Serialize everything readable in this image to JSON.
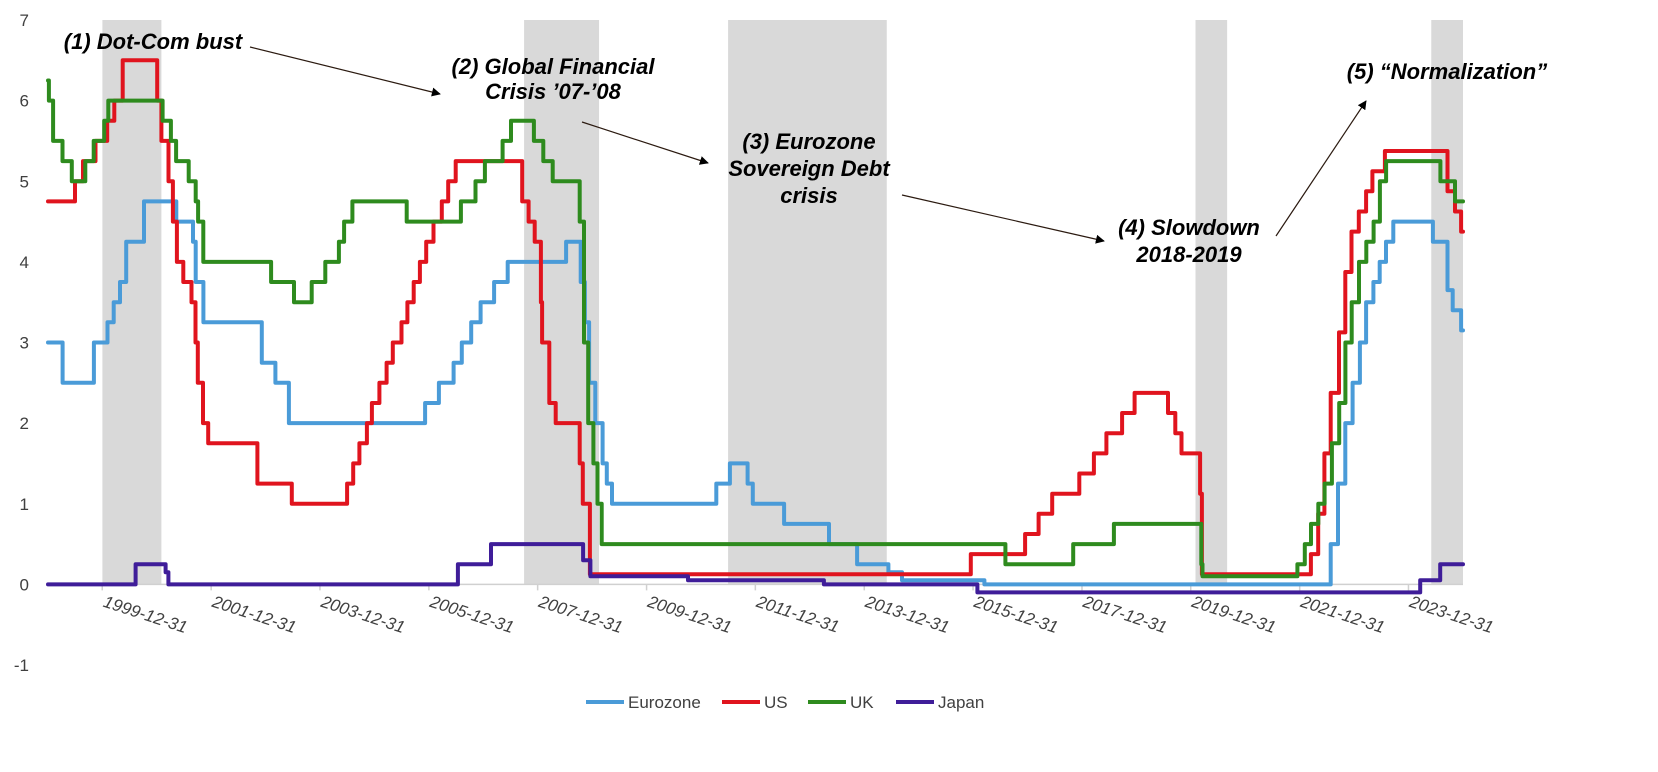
{
  "chart_data": {
    "type": "line",
    "xlim": [
      "1999-01-01",
      "2024-12-31"
    ],
    "ylim": [
      -1,
      7
    ],
    "yticks": [
      -1,
      0,
      1,
      2,
      3,
      4,
      5,
      6,
      7
    ],
    "xticks": [
      "1999-12-31",
      "2001-12-31",
      "2003-12-31",
      "2005-12-31",
      "2007-12-31",
      "2009-12-31",
      "2011-12-31",
      "2013-12-31",
      "2015-12-31",
      "2017-12-31",
      "2019-12-31",
      "2021-12-31",
      "2023-12-31"
    ],
    "legend": {
      "position": "bottom-center"
    },
    "shaded_periods": [
      {
        "start": "2000-01-01",
        "end": "2001-01-31"
      },
      {
        "start": "2007-10-01",
        "end": "2009-02-15"
      },
      {
        "start": "2011-07-01",
        "end": "2014-05-31"
      },
      {
        "start": "2020-02-01",
        "end": "2020-08-31"
      },
      {
        "start": "2024-06-01",
        "end": "2024-12-31"
      }
    ],
    "annotations": [
      {
        "text": [
          "(1) Dot-Com bust"
        ]
      },
      {
        "text": [
          "(2) Global  Financial",
          "Crisis ’07-’08"
        ]
      },
      {
        "text": [
          "(3) Eurozone",
          "Sovereign  Debt",
          "crisis"
        ]
      },
      {
        "text": [
          "(4) Slowdown",
          "2018-2019"
        ]
      },
      {
        "text": [
          "(5) “Normalization”"
        ]
      }
    ],
    "series": [
      {
        "name": "Eurozone",
        "color": "#4A9BD8",
        "points": [
          [
            "1999-01-01",
            3.0
          ],
          [
            "1999-04-01",
            3.0
          ],
          [
            "1999-04-09",
            2.5
          ],
          [
            "1999-11-01",
            2.5
          ],
          [
            "1999-11-05",
            3.0
          ],
          [
            "2000-02-01",
            3.0
          ],
          [
            "2000-02-04",
            3.25
          ],
          [
            "2000-03-17",
            3.5
          ],
          [
            "2000-04-28",
            3.75
          ],
          [
            "2000-06-09",
            4.25
          ],
          [
            "2000-10-06",
            4.75
          ],
          [
            "2001-05-11",
            4.5
          ],
          [
            "2001-08-31",
            4.25
          ],
          [
            "2001-09-18",
            3.75
          ],
          [
            "2001-11-09",
            3.25
          ],
          [
            "2002-12-06",
            2.75
          ],
          [
            "2003-03-07",
            2.5
          ],
          [
            "2003-06-06",
            2.0
          ],
          [
            "2005-12-06",
            2.25
          ],
          [
            "2006-03-08",
            2.5
          ],
          [
            "2006-06-15",
            2.75
          ],
          [
            "2006-08-09",
            3.0
          ],
          [
            "2006-10-11",
            3.25
          ],
          [
            "2006-12-13",
            3.5
          ],
          [
            "2007-03-14",
            3.75
          ],
          [
            "2007-06-13",
            4.0
          ],
          [
            "2008-07-09",
            4.25
          ],
          [
            "2008-10-15",
            3.75
          ],
          [
            "2008-11-12",
            3.25
          ],
          [
            "2008-12-10",
            2.5
          ],
          [
            "2009-01-21",
            2.0
          ],
          [
            "2009-03-11",
            1.5
          ],
          [
            "2009-04-08",
            1.25
          ],
          [
            "2009-05-13",
            1.0
          ],
          [
            "2011-04-13",
            1.25
          ],
          [
            "2011-07-13",
            1.5
          ],
          [
            "2011-11-09",
            1.25
          ],
          [
            "2011-12-14",
            1.0
          ],
          [
            "2012-07-11",
            0.75
          ],
          [
            "2013-05-08",
            0.5
          ],
          [
            "2013-11-13",
            0.25
          ],
          [
            "2014-06-11",
            0.15
          ],
          [
            "2014-09-10",
            0.05
          ],
          [
            "2016-03-16",
            0.0
          ],
          [
            "2022-07-27",
            0.5
          ],
          [
            "2022-09-14",
            1.25
          ],
          [
            "2022-11-02",
            2.0
          ],
          [
            "2022-12-21",
            2.5
          ],
          [
            "2023-02-08",
            3.0
          ],
          [
            "2023-03-22",
            3.5
          ],
          [
            "2023-05-10",
            3.75
          ],
          [
            "2023-06-21",
            4.0
          ],
          [
            "2023-08-02",
            4.25
          ],
          [
            "2023-09-20",
            4.5
          ],
          [
            "2024-06-12",
            4.25
          ],
          [
            "2024-09-18",
            3.65
          ],
          [
            "2024-10-23",
            3.4
          ],
          [
            "2024-12-18",
            3.15
          ]
        ]
      },
      {
        "name": "US",
        "color": "#E0141E",
        "points": [
          [
            "1999-01-01",
            4.75
          ],
          [
            "1999-07-01",
            5.0
          ],
          [
            "1999-08-24",
            5.25
          ],
          [
            "1999-11-16",
            5.5
          ],
          [
            "2000-02-02",
            5.75
          ],
          [
            "2000-03-21",
            6.0
          ],
          [
            "2000-05-16",
            6.5
          ],
          [
            "2001-01-03",
            6.0
          ],
          [
            "2001-01-31",
            5.5
          ],
          [
            "2001-03-20",
            5.0
          ],
          [
            "2001-04-18",
            4.5
          ],
          [
            "2001-05-15",
            4.0
          ],
          [
            "2001-06-27",
            3.75
          ],
          [
            "2001-08-21",
            3.5
          ],
          [
            "2001-09-17",
            3.0
          ],
          [
            "2001-10-02",
            2.5
          ],
          [
            "2001-11-06",
            2.0
          ],
          [
            "2001-12-11",
            1.75
          ],
          [
            "2002-11-06",
            1.25
          ],
          [
            "2003-06-25",
            1.0
          ],
          [
            "2004-06-30",
            1.25
          ],
          [
            "2004-08-10",
            1.5
          ],
          [
            "2004-09-21",
            1.75
          ],
          [
            "2004-11-10",
            2.0
          ],
          [
            "2004-12-14",
            2.25
          ],
          [
            "2005-02-02",
            2.5
          ],
          [
            "2005-03-22",
            2.75
          ],
          [
            "2005-05-03",
            3.0
          ],
          [
            "2005-06-30",
            3.25
          ],
          [
            "2005-08-09",
            3.5
          ],
          [
            "2005-09-20",
            3.75
          ],
          [
            "2005-11-01",
            4.0
          ],
          [
            "2005-12-13",
            4.25
          ],
          [
            "2006-01-31",
            4.5
          ],
          [
            "2006-03-28",
            4.75
          ],
          [
            "2006-05-10",
            5.0
          ],
          [
            "2006-06-29",
            5.25
          ],
          [
            "2007-09-18",
            4.75
          ],
          [
            "2007-10-31",
            4.5
          ],
          [
            "2007-12-11",
            4.25
          ],
          [
            "2008-01-22",
            3.5
          ],
          [
            "2008-01-30",
            3.0
          ],
          [
            "2008-03-18",
            2.25
          ],
          [
            "2008-04-30",
            2.0
          ],
          [
            "2008-10-08",
            1.5
          ],
          [
            "2008-10-29",
            1.0
          ],
          [
            "2008-12-16",
            0.125
          ],
          [
            "2015-12-16",
            0.375
          ],
          [
            "2016-12-14",
            0.625
          ],
          [
            "2017-03-15",
            0.875
          ],
          [
            "2017-06-14",
            1.125
          ],
          [
            "2017-12-13",
            1.375
          ],
          [
            "2018-03-21",
            1.625
          ],
          [
            "2018-06-13",
            1.875
          ],
          [
            "2018-09-26",
            2.125
          ],
          [
            "2018-12-19",
            2.375
          ],
          [
            "2019-07-31",
            2.125
          ],
          [
            "2019-09-18",
            1.875
          ],
          [
            "2019-10-30",
            1.625
          ],
          [
            "2020-03-03",
            1.125
          ],
          [
            "2020-03-15",
            0.125
          ],
          [
            "2022-03-16",
            0.375
          ],
          [
            "2022-05-04",
            0.875
          ],
          [
            "2022-06-15",
            1.625
          ],
          [
            "2022-07-27",
            2.375
          ],
          [
            "2022-09-21",
            3.125
          ],
          [
            "2022-11-02",
            3.875
          ],
          [
            "2022-12-14",
            4.375
          ],
          [
            "2023-02-01",
            4.625
          ],
          [
            "2023-03-22",
            4.875
          ],
          [
            "2023-05-03",
            5.125
          ],
          [
            "2023-07-26",
            5.375
          ],
          [
            "2024-09-18",
            4.875
          ],
          [
            "2024-11-07",
            4.625
          ],
          [
            "2024-12-18",
            4.375
          ]
        ]
      },
      {
        "name": "UK",
        "color": "#2E8B1E",
        "points": [
          [
            "1999-01-01",
            6.25
          ],
          [
            "1999-01-07",
            6.0
          ],
          [
            "1999-02-04",
            5.5
          ],
          [
            "1999-04-08",
            5.25
          ],
          [
            "1999-06-10",
            5.0
          ],
          [
            "1999-09-08",
            5.25
          ],
          [
            "1999-11-04",
            5.5
          ],
          [
            "2000-01-13",
            5.75
          ],
          [
            "2000-02-10",
            6.0
          ],
          [
            "2001-02-08",
            5.75
          ],
          [
            "2001-04-05",
            5.5
          ],
          [
            "2001-05-10",
            5.25
          ],
          [
            "2001-08-02",
            5.0
          ],
          [
            "2001-09-18",
            4.75
          ],
          [
            "2001-10-04",
            4.5
          ],
          [
            "2001-11-08",
            4.0
          ],
          [
            "2003-02-06",
            3.75
          ],
          [
            "2003-07-10",
            3.5
          ],
          [
            "2003-11-06",
            3.75
          ],
          [
            "2004-02-05",
            4.0
          ],
          [
            "2004-05-06",
            4.25
          ],
          [
            "2004-06-10",
            4.5
          ],
          [
            "2004-08-05",
            4.75
          ],
          [
            "2005-08-04",
            4.5
          ],
          [
            "2006-08-03",
            4.75
          ],
          [
            "2006-11-09",
            5.0
          ],
          [
            "2007-01-11",
            5.25
          ],
          [
            "2007-05-10",
            5.5
          ],
          [
            "2007-07-05",
            5.75
          ],
          [
            "2007-12-06",
            5.5
          ],
          [
            "2008-02-07",
            5.25
          ],
          [
            "2008-04-10",
            5.0
          ],
          [
            "2008-10-08",
            4.5
          ],
          [
            "2008-11-06",
            3.0
          ],
          [
            "2008-12-04",
            2.0
          ],
          [
            "2009-01-08",
            1.5
          ],
          [
            "2009-02-05",
            1.0
          ],
          [
            "2009-03-05",
            0.5
          ],
          [
            "2016-08-04",
            0.25
          ],
          [
            "2017-11-02",
            0.5
          ],
          [
            "2018-08-02",
            0.75
          ],
          [
            "2020-03-11",
            0.25
          ],
          [
            "2020-03-19",
            0.1
          ],
          [
            "2021-12-16",
            0.25
          ],
          [
            "2022-02-03",
            0.5
          ],
          [
            "2022-03-17",
            0.75
          ],
          [
            "2022-05-05",
            1.0
          ],
          [
            "2022-06-16",
            1.25
          ],
          [
            "2022-08-04",
            1.75
          ],
          [
            "2022-09-22",
            2.25
          ],
          [
            "2022-11-03",
            3.0
          ],
          [
            "2022-12-15",
            3.5
          ],
          [
            "2023-02-02",
            4.0
          ],
          [
            "2023-03-23",
            4.25
          ],
          [
            "2023-05-11",
            4.5
          ],
          [
            "2023-06-22",
            5.0
          ],
          [
            "2023-08-03",
            5.25
          ],
          [
            "2024-08-01",
            5.0
          ],
          [
            "2024-11-07",
            4.75
          ],
          [
            "2024-12-31",
            4.75
          ]
        ]
      },
      {
        "name": "Japan",
        "color": "#3F1D99",
        "points": [
          [
            "1999-01-01",
            0.0
          ],
          [
            "2000-08-11",
            0.25
          ],
          [
            "2001-02-28",
            0.15
          ],
          [
            "2001-03-19",
            0.0
          ],
          [
            "2006-07-14",
            0.25
          ],
          [
            "2007-02-21",
            0.5
          ],
          [
            "2008-10-31",
            0.3
          ],
          [
            "2008-12-19",
            0.1
          ],
          [
            "2010-10-05",
            0.05
          ],
          [
            "2013-04-04",
            0.0
          ],
          [
            "2016-01-29",
            -0.1
          ],
          [
            "2024-03-19",
            0.05
          ],
          [
            "2024-07-31",
            0.25
          ],
          [
            "2024-12-31",
            0.25
          ]
        ]
      }
    ]
  }
}
